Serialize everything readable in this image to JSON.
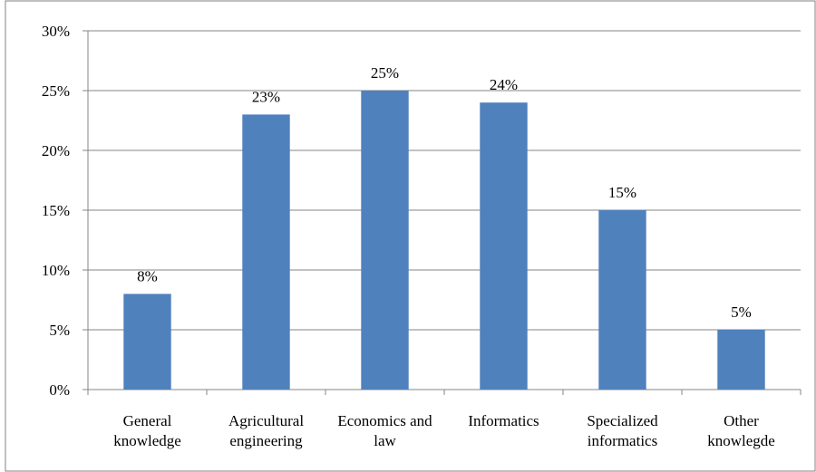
{
  "chart_data": {
    "type": "bar",
    "title": "",
    "xlabel": "",
    "ylabel": "",
    "categories": [
      [
        "General",
        "knowledge"
      ],
      [
        "Agricultural",
        "engineering"
      ],
      [
        "Economics and",
        "law"
      ],
      [
        "Informatics"
      ],
      [
        "Specialized",
        "informatics"
      ],
      [
        "Other",
        "knowlegde"
      ]
    ],
    "values": [
      8,
      23,
      25,
      24,
      15,
      5
    ],
    "value_labels": [
      "8%",
      "23%",
      "25%",
      "24%",
      "15%",
      "5%"
    ],
    "ylim": [
      0,
      30
    ],
    "yticks": [
      0,
      5,
      10,
      15,
      20,
      25,
      30
    ],
    "ytick_labels": [
      "0%",
      "5%",
      "10%",
      "15%",
      "20%",
      "25%",
      "30%"
    ],
    "grid": true,
    "legend": "none",
    "bar_color": "#4F81BD"
  }
}
